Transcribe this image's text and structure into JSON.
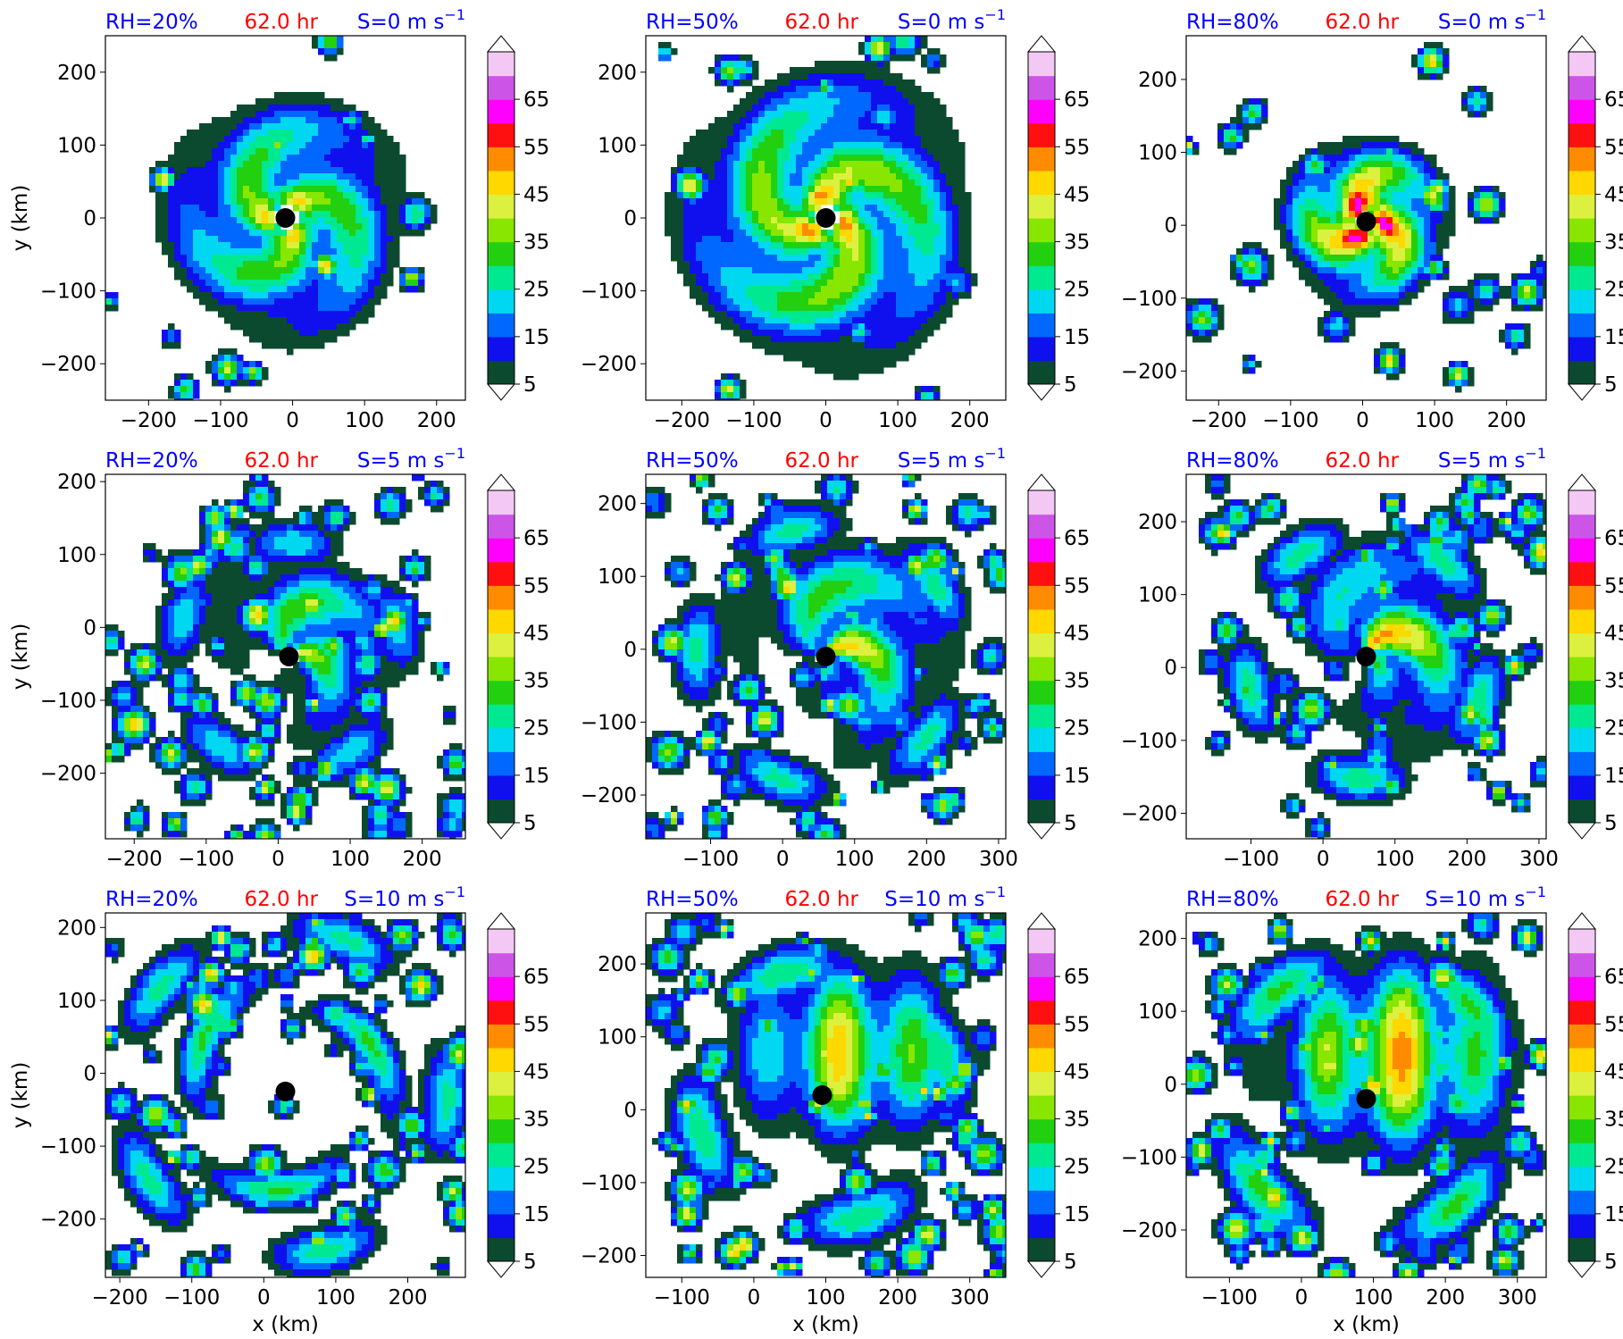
{
  "figure": {
    "type": "filled-contour-grid",
    "time_label": "62.0 hr",
    "x_axis_label": "x (km)",
    "y_axis_label": "y (km)",
    "colorbar": {
      "levels": [
        5,
        10,
        15,
        20,
        25,
        30,
        35,
        40,
        45,
        50,
        55,
        60,
        65,
        70
      ],
      "tick_labels": [
        "5",
        "15",
        "25",
        "35",
        "45",
        "55",
        "65"
      ],
      "colors": [
        "#0b4a2f",
        "#1010ee",
        "#0068ff",
        "#00d8f2",
        "#00e890",
        "#22d010",
        "#88e600",
        "#dcf040",
        "#ffd800",
        "#ff8c00",
        "#ff1010",
        "#ff00ff",
        "#cc55e8",
        "#f4c8f4"
      ],
      "extend": "both"
    }
  },
  "chart_data": [
    {
      "type": "heatmap",
      "rh_label": "RH=20%",
      "time_label": "62.0 hr",
      "shear_label": "S=0 m s",
      "shear_exp": "−1",
      "xlim": [
        -260,
        240
      ],
      "ylim": [
        -250,
        250
      ],
      "xticks": [
        -200,
        -100,
        0,
        100,
        200
      ],
      "yticks": [
        -200,
        -100,
        0,
        100,
        200
      ],
      "xtick_labels": [
        "−200",
        "−100",
        "0",
        "100",
        "200"
      ],
      "ytick_labels": [
        "−200",
        "−100",
        "0",
        "100",
        "200"
      ],
      "center": [
        -10,
        0
      ],
      "pattern": "symmetric",
      "radius": 155,
      "intensity": 0.62,
      "show_xlabel": false,
      "show_ylabel": true
    },
    {
      "type": "heatmap",
      "rh_label": "RH=50%",
      "time_label": "62.0 hr",
      "shear_label": "S=0 m s",
      "shear_exp": "−1",
      "xlim": [
        -250,
        250
      ],
      "ylim": [
        -250,
        250
      ],
      "xticks": [
        -200,
        -100,
        0,
        100,
        200
      ],
      "yticks": [
        -200,
        -100,
        0,
        100,
        200
      ],
      "xtick_labels": [
        "−200",
        "−100",
        "0",
        "100",
        "200"
      ],
      "ytick_labels": [
        "−200",
        "−100",
        "0",
        "100",
        "200"
      ],
      "center": [
        0,
        0
      ],
      "pattern": "symmetric",
      "radius": 185,
      "intensity": 0.7,
      "show_xlabel": false,
      "show_ylabel": false
    },
    {
      "type": "heatmap",
      "rh_label": "RH=80%",
      "time_label": "62.0 hr",
      "shear_label": "S=0 m s",
      "shear_exp": "−1",
      "xlim": [
        -245,
        255
      ],
      "ylim": [
        -240,
        260
      ],
      "xticks": [
        -200,
        -100,
        0,
        100,
        200
      ],
      "yticks": [
        -200,
        -100,
        0,
        100,
        200
      ],
      "xtick_labels": [
        "−200",
        "−100",
        "0",
        "100",
        "200"
      ],
      "ytick_labels": [
        "−200",
        "−100",
        "0",
        "100",
        "200"
      ],
      "center": [
        5,
        5
      ],
      "pattern": "compact",
      "radius": 105,
      "intensity": 0.85,
      "show_xlabel": false,
      "show_ylabel": false
    },
    {
      "type": "heatmap",
      "rh_label": "RH=20%",
      "time_label": "62.0 hr",
      "shear_label": "S=5 m s",
      "shear_exp": "−1",
      "xlim": [
        -240,
        260
      ],
      "ylim": [
        -290,
        210
      ],
      "xticks": [
        -200,
        -100,
        0,
        100,
        200
      ],
      "yticks": [
        -200,
        -100,
        0,
        100,
        200
      ],
      "xtick_labels": [
        "−200",
        "−100",
        "0",
        "100",
        "200"
      ],
      "ytick_labels": [
        "−200",
        "−100",
        "0",
        "100",
        "200"
      ],
      "center": [
        15,
        -40
      ],
      "pattern": "sheared",
      "radius": 130,
      "intensity": 0.62,
      "show_xlabel": false,
      "show_ylabel": true
    },
    {
      "type": "heatmap",
      "rh_label": "RH=50%",
      "time_label": "62.0 hr",
      "shear_label": "S=5 m s",
      "shear_exp": "−1",
      "xlim": [
        -190,
        310
      ],
      "ylim": [
        -260,
        240
      ],
      "xticks": [
        -100,
        0,
        100,
        200,
        300
      ],
      "yticks": [
        -200,
        -100,
        0,
        100,
        200
      ],
      "xtick_labels": [
        "−100",
        "0",
        "100",
        "200",
        "300"
      ],
      "ytick_labels": [
        "−200",
        "−100",
        "0",
        "100",
        "200"
      ],
      "center": [
        60,
        -10
      ],
      "pattern": "sheared",
      "radius": 150,
      "intensity": 0.68,
      "show_xlabel": false,
      "show_ylabel": false
    },
    {
      "type": "heatmap",
      "rh_label": "RH=80%",
      "time_label": "62.0 hr",
      "shear_label": "S=5 m s",
      "shear_exp": "−1",
      "xlim": [
        -190,
        310
      ],
      "ylim": [
        -235,
        265
      ],
      "xticks": [
        -100,
        0,
        100,
        200,
        300
      ],
      "yticks": [
        -200,
        -100,
        0,
        100,
        200
      ],
      "xtick_labels": [
        "−100",
        "0",
        "100",
        "200",
        "300"
      ],
      "ytick_labels": [
        "−200",
        "−100",
        "0",
        "100",
        "200"
      ],
      "center": [
        60,
        15
      ],
      "pattern": "sheared",
      "radius": 140,
      "intensity": 0.72,
      "show_xlabel": false,
      "show_ylabel": false
    },
    {
      "type": "heatmap",
      "rh_label": "RH=20%",
      "time_label": "62.0 hr",
      "shear_label": "S=10 m s",
      "shear_exp": "−1",
      "xlim": [
        -220,
        280
      ],
      "ylim": [
        -280,
        220
      ],
      "xticks": [
        -200,
        -100,
        0,
        100,
        200
      ],
      "yticks": [
        -200,
        -100,
        0,
        100,
        200
      ],
      "xtick_labels": [
        "−200",
        "−100",
        "0",
        "100",
        "200"
      ],
      "ytick_labels": [
        "−200",
        "−100",
        "0",
        "100",
        "200"
      ],
      "center": [
        30,
        -25
      ],
      "pattern": "scattered",
      "radius": 150,
      "intensity": 0.5,
      "show_xlabel": true,
      "show_ylabel": true
    },
    {
      "type": "heatmap",
      "rh_label": "RH=50%",
      "time_label": "62.0 hr",
      "shear_label": "S=10 m s",
      "shear_exp": "−1",
      "xlim": [
        -150,
        350
      ],
      "ylim": [
        -230,
        270
      ],
      "xticks": [
        -100,
        0,
        100,
        200,
        300
      ],
      "yticks": [
        -200,
        -100,
        0,
        100,
        200
      ],
      "xtick_labels": [
        "−100",
        "0",
        "100",
        "200",
        "300"
      ],
      "ytick_labels": [
        "−200",
        "−100",
        "0",
        "100",
        "200"
      ],
      "center": [
        95,
        20
      ],
      "pattern": "downshear",
      "radius": 110,
      "intensity": 0.7,
      "show_xlabel": true,
      "show_ylabel": false
    },
    {
      "type": "heatmap",
      "rh_label": "RH=80%",
      "time_label": "62.0 hr",
      "shear_label": "S=10 m s",
      "shear_exp": "−1",
      "xlim": [
        -160,
        340
      ],
      "ylim": [
        -265,
        235
      ],
      "xticks": [
        -100,
        0,
        100,
        200,
        300
      ],
      "yticks": [
        -200,
        -100,
        0,
        100,
        200
      ],
      "xtick_labels": [
        "−100",
        "0",
        "100",
        "200",
        "300"
      ],
      "ytick_labels": [
        "−200",
        "−100",
        "0",
        "100",
        "200"
      ],
      "center": [
        90,
        -20
      ],
      "pattern": "downshear",
      "radius": 120,
      "intensity": 0.75,
      "show_xlabel": true,
      "show_ylabel": false
    }
  ]
}
